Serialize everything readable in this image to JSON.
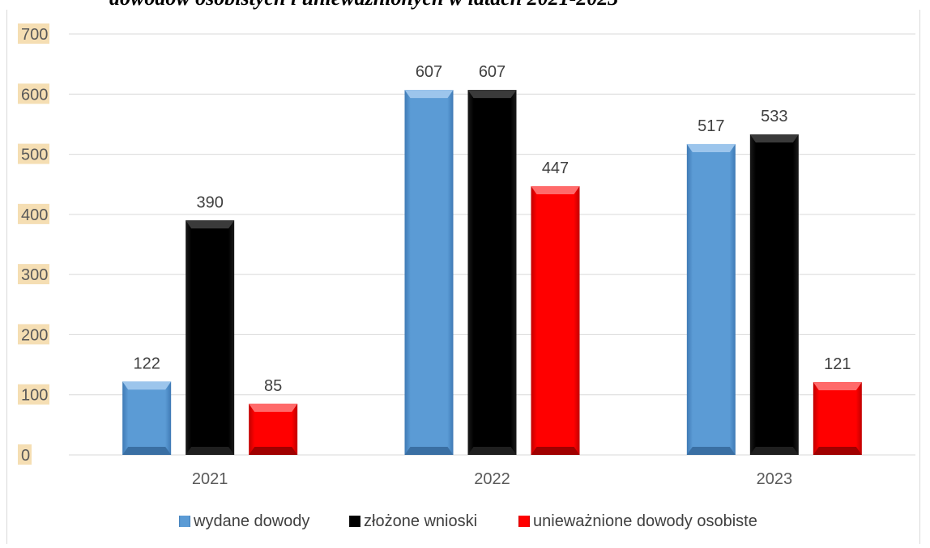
{
  "page_title": "dowodów osobistych i unieważnionych w latach 2021-2023",
  "chart_data": {
    "type": "bar",
    "categories": [
      "2021",
      "2022",
      "2023"
    ],
    "series": [
      {
        "name": "wydane dowody",
        "values": [
          122,
          607,
          517
        ],
        "color": "#5b9bd5"
      },
      {
        "name": "złożone wnioski",
        "values": [
          390,
          607,
          533
        ],
        "color": "#000000"
      },
      {
        "name": "unieważnione dowody osobiste",
        "values": [
          85,
          447,
          121
        ],
        "color": "#ff0000"
      }
    ],
    "ylim": [
      0,
      700
    ],
    "yticks": [
      0,
      100,
      200,
      300,
      400,
      500,
      600,
      700
    ],
    "grid": true,
    "legend": "bottom"
  }
}
